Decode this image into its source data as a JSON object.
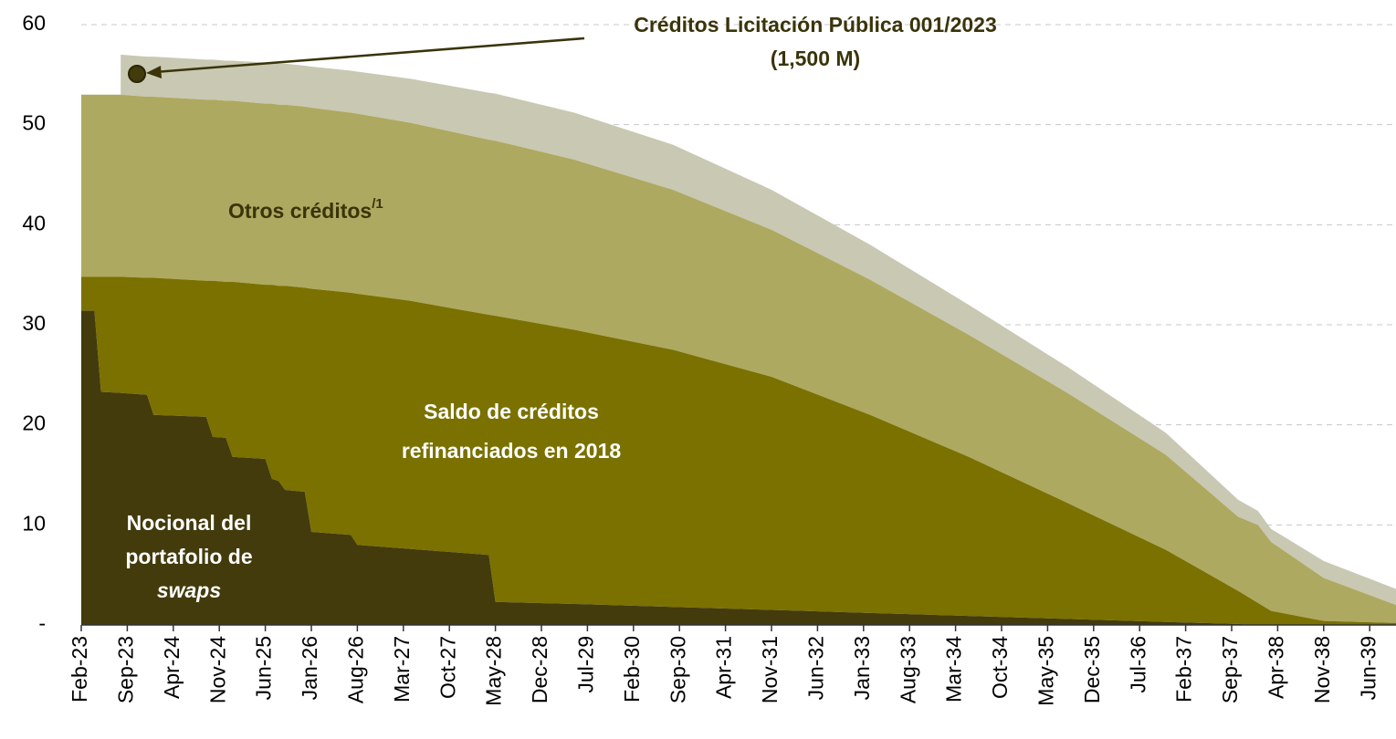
{
  "chart_data": {
    "type": "stacked_area",
    "x": [
      "2023-02",
      "2023-04",
      "2023-05",
      "2023-08",
      "2023-12",
      "2024-01",
      "2024-09",
      "2024-10",
      "2024-12",
      "2025-01",
      "2025-06",
      "2025-07",
      "2025-08",
      "2025-09",
      "2025-12",
      "2026-01",
      "2026-07",
      "2026-08",
      "2027-04",
      "2028-04",
      "2028-05",
      "2029-05",
      "2030-08",
      "2031-11",
      "2033-02",
      "2034-05",
      "2035-08",
      "2036-11",
      "2037-10",
      "2038-01",
      "2038-03",
      "2038-11",
      "2039-10"
    ],
    "series": [
      {
        "name": [
          "Nocional del",
          "portafolio de",
          "swaps"
        ],
        "color": "#433b0c",
        "values": [
          31.4,
          31.4,
          23.3,
          23.2,
          23.0,
          21.0,
          20.8,
          18.8,
          18.7,
          16.8,
          16.6,
          14.6,
          14.4,
          13.5,
          13.3,
          9.3,
          9.0,
          8.0,
          7.6,
          7.0,
          2.3,
          2.1,
          1.8,
          1.5,
          1.2,
          0.9,
          0.6,
          0.3,
          0.1,
          0,
          0,
          0,
          0
        ]
      },
      {
        "name": [
          "Saldo de créditos",
          "refinanciados en 2018"
        ],
        "color": "#7a7100",
        "values": [
          3.4,
          3.4,
          11.5,
          11.6,
          11.7,
          13.7,
          13.6,
          15.6,
          15.6,
          17.5,
          17.4,
          19.4,
          19.5,
          20.4,
          20.4,
          24.3,
          24.2,
          25.1,
          24.8,
          24.0,
          28.6,
          27.4,
          25.7,
          23.3,
          19.8,
          15.9,
          11.6,
          7.2,
          3.3,
          2.2,
          1.4,
          0.4,
          0.2
        ]
      },
      {
        "name": [
          "Otros créditos"
        ],
        "note_mark": "/1",
        "color": "#aea960",
        "values": [
          18.2,
          18.2,
          18.2,
          18.2,
          18.1,
          18.1,
          18.1,
          18.1,
          18.1,
          18.1,
          18.1,
          18.1,
          18.1,
          18.1,
          18.1,
          18.1,
          18.0,
          18.0,
          17.8,
          17.5,
          17.5,
          17.0,
          16.0,
          14.7,
          13.5,
          12.2,
          11.0,
          9.5,
          7.4,
          7.8,
          6.9,
          4.3,
          1.8
        ]
      },
      {
        "name": [
          "Créditos Licitación Pública 001/2023",
          "(1,500 M)"
        ],
        "color": "#c9c8b3",
        "values": [
          null,
          null,
          null,
          4.0,
          4.0,
          4.0,
          4.0,
          4.0,
          4.0,
          4.0,
          4.1,
          4.1,
          4.1,
          4.1,
          4.1,
          4.1,
          4.2,
          4.2,
          4.4,
          4.7,
          4.7,
          4.7,
          4.5,
          4.0,
          3.5,
          3.0,
          2.6,
          2.2,
          1.7,
          1.4,
          1.3,
          1.7,
          1.6
        ]
      }
    ],
    "xlim": [
      "2023-02",
      "2039-10"
    ],
    "xticks": [
      {
        "value": "2023-02",
        "label": "Feb-23"
      },
      {
        "value": "2023-09",
        "label": "Sep-23"
      },
      {
        "value": "2024-04",
        "label": "Apr-24"
      },
      {
        "value": "2024-11",
        "label": "Nov-24"
      },
      {
        "value": "2025-06",
        "label": "Jun-25"
      },
      {
        "value": "2026-01",
        "label": "Jan-26"
      },
      {
        "value": "2026-08",
        "label": "Aug-26"
      },
      {
        "value": "2027-03",
        "label": "Mar-27"
      },
      {
        "value": "2027-10",
        "label": "Oct-27"
      },
      {
        "value": "2028-05",
        "label": "May-28"
      },
      {
        "value": "2028-12",
        "label": "Dec-28"
      },
      {
        "value": "2029-07",
        "label": "Jul-29"
      },
      {
        "value": "2030-02",
        "label": "Feb-30"
      },
      {
        "value": "2030-09",
        "label": "Sep-30"
      },
      {
        "value": "2031-04",
        "label": "Apr-31"
      },
      {
        "value": "2031-11",
        "label": "Nov-31"
      },
      {
        "value": "2032-06",
        "label": "Jun-32"
      },
      {
        "value": "2033-01",
        "label": "Jan-33"
      },
      {
        "value": "2033-08",
        "label": "Aug-33"
      },
      {
        "value": "2034-03",
        "label": "Mar-34"
      },
      {
        "value": "2034-10",
        "label": "Oct-34"
      },
      {
        "value": "2035-05",
        "label": "May-35"
      },
      {
        "value": "2035-12",
        "label": "Dec-35"
      },
      {
        "value": "2036-07",
        "label": "Jul-36"
      },
      {
        "value": "2037-02",
        "label": "Feb-37"
      },
      {
        "value": "2037-09",
        "label": "Sep-37"
      },
      {
        "value": "2038-04",
        "label": "Apr-38"
      },
      {
        "value": "2038-11",
        "label": "Nov-38"
      },
      {
        "value": "2039-06",
        "label": "Jun-39"
      }
    ],
    "ylim": [
      0,
      60
    ],
    "yticks": [
      {
        "value": 0,
        "label": "-"
      },
      10,
      20,
      30,
      40,
      50,
      60
    ],
    "grid": true
  }
}
